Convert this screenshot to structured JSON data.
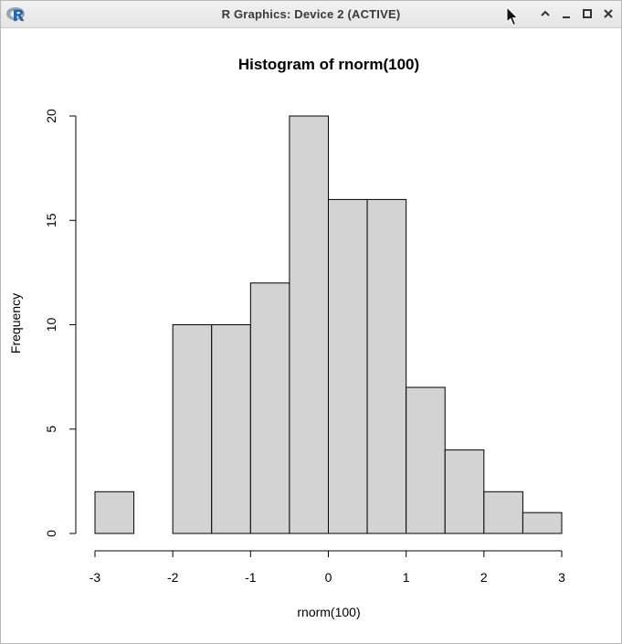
{
  "window": {
    "title": "R Graphics: Device 2 (ACTIVE)",
    "app_icon": "r-logo-icon",
    "controls": [
      "chevron-up-icon",
      "minimize-icon",
      "maximize-icon",
      "close-icon"
    ]
  },
  "chart_data": {
    "type": "bar",
    "subtype": "histogram",
    "title": "Histogram of rnorm(100)",
    "xlabel": "rnorm(100)",
    "ylabel": "Frequency",
    "bins": [
      {
        "from": -3.0,
        "to": -2.5,
        "count": 2
      },
      {
        "from": -2.5,
        "to": -2.0,
        "count": 0
      },
      {
        "from": -2.0,
        "to": -1.5,
        "count": 10
      },
      {
        "from": -1.5,
        "to": -1.0,
        "count": 10
      },
      {
        "from": -1.0,
        "to": -0.5,
        "count": 12
      },
      {
        "from": -0.5,
        "to": 0.0,
        "count": 20
      },
      {
        "from": 0.0,
        "to": 0.5,
        "count": 16
      },
      {
        "from": 0.5,
        "to": 1.0,
        "count": 16
      },
      {
        "from": 1.0,
        "to": 1.5,
        "count": 7
      },
      {
        "from": 1.5,
        "to": 2.0,
        "count": 4
      },
      {
        "from": 2.0,
        "to": 2.5,
        "count": 2
      },
      {
        "from": 2.5,
        "to": 3.0,
        "count": 1
      }
    ],
    "xlim": [
      -3,
      3
    ],
    "ylim": [
      0,
      20
    ],
    "x_ticks": [
      -3,
      -2,
      -1,
      0,
      1,
      2,
      3
    ],
    "x_tick_labels": [
      "-3",
      "-2",
      "-1",
      "0",
      "1",
      "2",
      "3"
    ],
    "y_ticks": [
      0,
      5,
      10,
      15,
      20
    ],
    "y_tick_labels": [
      "0",
      "5",
      "10",
      "15",
      "20"
    ],
    "bar_fill": "#d3d3d3",
    "bar_stroke": "#000000",
    "grid": false
  }
}
